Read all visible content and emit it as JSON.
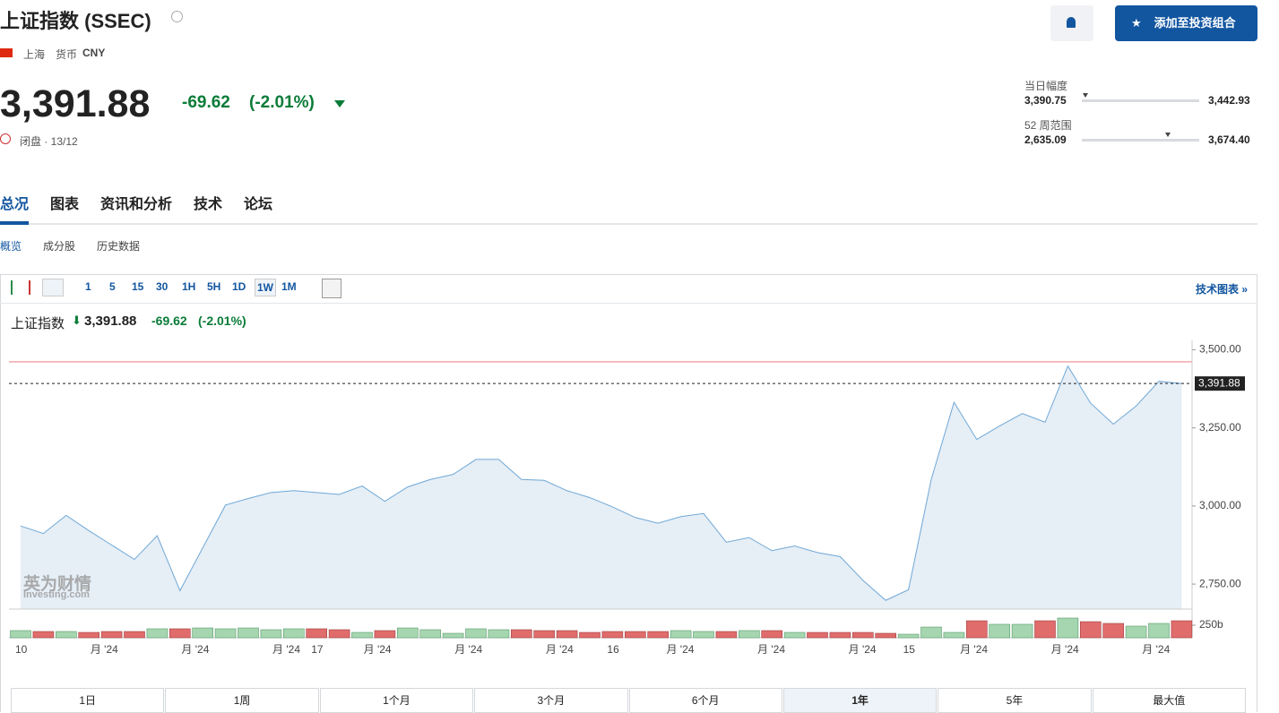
{
  "header": {
    "title": "上证指数 (SSEC)",
    "exchange": "上海",
    "currency_label": "货币",
    "currency": "CNY"
  },
  "quote": {
    "price": "3,391.88",
    "change": "-69.62",
    "change_pct": "(-2.01%)",
    "status": "闭盘 · 13/12"
  },
  "actions": {
    "add_portfolio": "添加至投资组合"
  },
  "ranges": [
    {
      "label": "当日幅度",
      "low": {
        "value": 3390.75,
        "label": "3,390.75"
      },
      "high": {
        "value": 3442.93,
        "label": "3,442.93"
      }
    },
    {
      "label": "52 周范围",
      "low": {
        "value": 2635.09,
        "label": "2,635.09"
      },
      "high": {
        "value": 3674.4,
        "label": "3,674.40"
      }
    }
  ],
  "tabs": [
    "总况",
    "图表",
    "资讯和分析",
    "技术",
    "论坛"
  ],
  "subtabs": [
    "概览",
    "成分股",
    "历史数据"
  ],
  "intervals": [
    "1",
    "5",
    "15",
    "30",
    "1H",
    "5H",
    "1D",
    "1W",
    "1M"
  ],
  "active_interval": 7,
  "tech_chart": "技术图表 »",
  "legend": {
    "name": "上证指数",
    "price": "3,391.88",
    "change": "-69.62",
    "change_pct": "(-2.01%)"
  },
  "watermark": {
    "brand": "英为财情",
    "site": "Investing.com"
  },
  "chart_data": {
    "type": "line",
    "color": "#6fa8d6",
    "fill": "#e6eef6",
    "up_color": "#a5d6b0",
    "down_color": "#e06c6c",
    "values": [
      2936,
      2912,
      2970,
      2921,
      2875,
      2829,
      2905,
      2729,
      2866,
      3003,
      3024,
      3043,
      3049,
      3043,
      3037,
      3064,
      3015,
      3061,
      3085,
      3101,
      3149,
      3149,
      3085,
      3082,
      3049,
      3027,
      2997,
      2963,
      2945,
      2966,
      2976,
      2884,
      2899,
      2857,
      2872,
      2851,
      2838,
      2762,
      2698,
      2732,
      3085,
      3332,
      3213,
      3256,
      3296,
      3268,
      3448,
      3329,
      3262,
      3320,
      3399,
      3391.88
    ],
    "volume": [
      143,
      125,
      125,
      107,
      125,
      125,
      179,
      179,
      196,
      179,
      196,
      161,
      179,
      179,
      161,
      107,
      143,
      196,
      161,
      89,
      179,
      161,
      161,
      143,
      143,
      107,
      125,
      125,
      125,
      143,
      125,
      125,
      143,
      143,
      107,
      107,
      107,
      107,
      89,
      71,
      214,
      107,
      339,
      268,
      268,
      339,
      393,
      321,
      286,
      232,
      286,
      339
    ],
    "ylim": [
      2670,
      3530
    ],
    "yticks": [
      {
        "value": 2750,
        "label": "2,750.00"
      },
      {
        "value": 3000,
        "label": "3,000.00"
      },
      {
        "value": 3250,
        "label": "3,250.00"
      },
      {
        "value": 3500,
        "label": "3,500.00"
      }
    ],
    "vticks": [
      {
        "value": 250,
        "label": "250b"
      }
    ],
    "reference_line": 3461.5,
    "last_value": {
      "value": 3391.88,
      "label": "3,391.88"
    },
    "xticks": [
      {
        "value": 0,
        "label": "10"
      },
      {
        "value": 3.3,
        "label": "月 '24"
      },
      {
        "value": 7.3,
        "label": "月 '24"
      },
      {
        "value": 11.3,
        "label": "月 '24"
      },
      {
        "value": 13,
        "label": "17"
      },
      {
        "value": 15.3,
        "label": "月 '24"
      },
      {
        "value": 19.3,
        "label": "月 '24"
      },
      {
        "value": 23.3,
        "label": "月 '24"
      },
      {
        "value": 26,
        "label": "16"
      },
      {
        "value": 28.6,
        "label": "月 '24"
      },
      {
        "value": 32.6,
        "label": "月 '24"
      },
      {
        "value": 36.6,
        "label": "月 '24"
      },
      {
        "value": 39,
        "label": "15"
      },
      {
        "value": 41.5,
        "label": "月 '24"
      },
      {
        "value": 45.5,
        "label": "月 '24"
      },
      {
        "value": 49.5,
        "label": "月 '24"
      }
    ],
    "grid": false
  },
  "periods": [
    "1日",
    "1周",
    "1个月",
    "3个月",
    "6个月",
    "1年",
    "5年",
    "最大值"
  ],
  "active_period": 5
}
